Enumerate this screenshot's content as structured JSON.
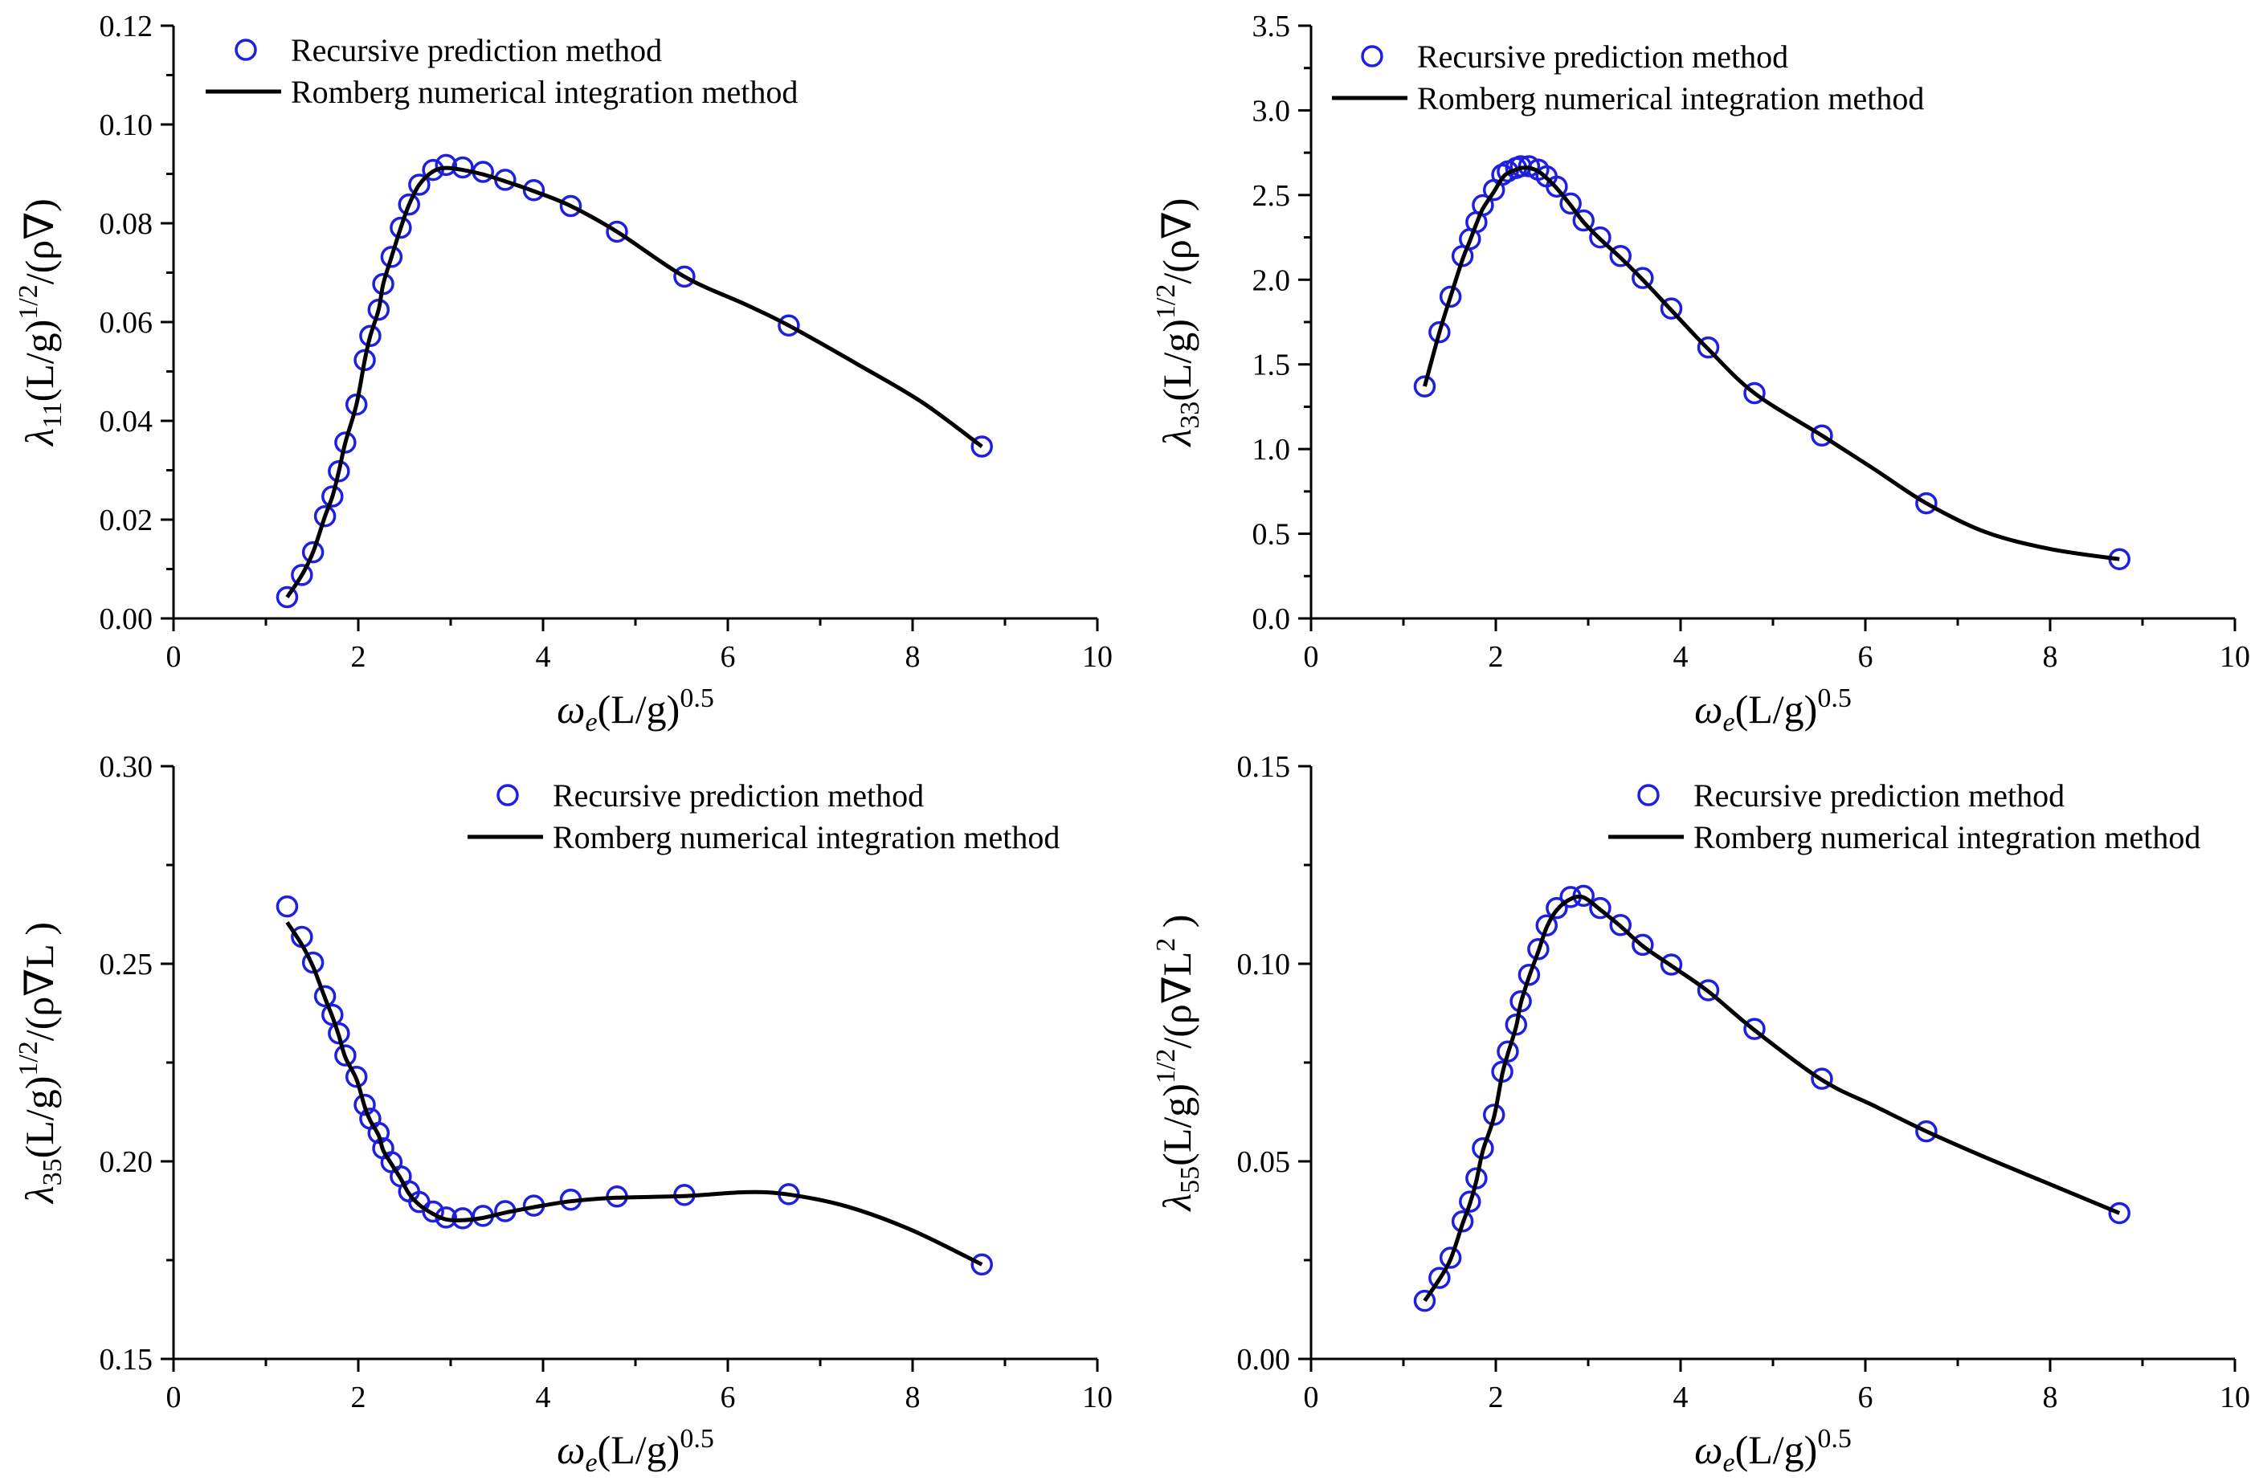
{
  "colors": {
    "marker": "#1f1fe0",
    "line": "#000000",
    "axes": "#000000"
  },
  "chart_data": [
    {
      "id": "lambda11",
      "type": "line",
      "title": "",
      "xlabel": "ω_e(L/g)^0.5",
      "xlabel_parts": {
        "sym": "ω",
        "sub": "e",
        "mid": "(L/g)",
        "sup": "0.5"
      },
      "ylabel": "λ11(L/g)^1/2/(ρ∇)",
      "ylabel_parts": {
        "sym": "λ",
        "sub": "11",
        "mid": "(L/g)",
        "sup": "1/2",
        "tail": "/(ρ∇)"
      },
      "xlim": [
        0,
        10
      ],
      "ylim": [
        0,
        0.12
      ],
      "xticks": [
        "0",
        "2",
        "4",
        "6",
        "8",
        "10"
      ],
      "yticks": [
        "0.00",
        "0.02",
        "0.04",
        "0.06",
        "0.08",
        "0.10",
        "0.12"
      ],
      "legend": {
        "placement": "top-left",
        "entries": [
          "Recursive prediction method",
          "Romberg numerical integration method"
        ]
      },
      "series": [
        {
          "name": "Recursive prediction method",
          "marker": "circle",
          "x": [
            1.23,
            1.39,
            1.51,
            1.64,
            1.72,
            1.79,
            1.86,
            1.98,
            2.07,
            2.13,
            2.22,
            2.27,
            2.36,
            2.46,
            2.55,
            2.66,
            2.81,
            2.95,
            3.13,
            3.35,
            3.59,
            3.9,
            4.3,
            4.8,
            5.53,
            6.66,
            8.75
          ],
          "y": [
            0.0043,
            0.0088,
            0.0134,
            0.0207,
            0.0247,
            0.0298,
            0.0356,
            0.0433,
            0.0523,
            0.0572,
            0.0625,
            0.0677,
            0.0732,
            0.0791,
            0.0838,
            0.0878,
            0.0908,
            0.0918,
            0.0913,
            0.0904,
            0.0888,
            0.0867,
            0.0835,
            0.0783,
            0.0692,
            0.0593,
            0.0348
          ]
        },
        {
          "name": "Romberg numerical integration method",
          "marker": "none",
          "x": [
            1.23,
            1.39,
            1.51,
            1.64,
            1.72,
            1.79,
            1.86,
            1.98,
            2.07,
            2.13,
            2.22,
            2.27,
            2.36,
            2.46,
            2.55,
            2.66,
            2.81,
            2.95,
            3.13,
            3.35,
            3.59,
            3.9,
            4.3,
            4.8,
            5.53,
            6.2,
            6.66,
            7.4,
            8.1,
            8.75
          ],
          "y": [
            0.0043,
            0.0088,
            0.0134,
            0.0207,
            0.0247,
            0.0298,
            0.0356,
            0.0433,
            0.0523,
            0.0572,
            0.0625,
            0.0677,
            0.0732,
            0.0791,
            0.0838,
            0.0878,
            0.0905,
            0.0912,
            0.0908,
            0.0899,
            0.0885,
            0.0865,
            0.0835,
            0.0783,
            0.0692,
            0.0635,
            0.0593,
            0.0515,
            0.0438,
            0.0348
          ]
        }
      ]
    },
    {
      "id": "lambda33",
      "type": "line",
      "title": "",
      "xlabel": "ω_e(L/g)^0.5",
      "xlabel_parts": {
        "sym": "ω",
        "sub": "e",
        "mid": "(L/g)",
        "sup": "0.5"
      },
      "ylabel": "λ33(L/g)^1/2/(ρ∇)",
      "ylabel_parts": {
        "sym": "λ",
        "sub": "33",
        "mid": "(L/g)",
        "sup": "1/2",
        "tail": "/(ρ∇)"
      },
      "xlim": [
        0,
        10
      ],
      "ylim": [
        0,
        3.5
      ],
      "xticks": [
        "0",
        "2",
        "4",
        "6",
        "8",
        "10"
      ],
      "yticks": [
        "0.0",
        "0.5",
        "1.0",
        "1.5",
        "2.0",
        "2.5",
        "3.0",
        "3.5"
      ],
      "legend": {
        "placement": "top-left",
        "entries": [
          "Recursive prediction method",
          "Romberg numerical integration method"
        ]
      },
      "series": [
        {
          "name": "Recursive prediction method",
          "marker": "circle",
          "x": [
            1.23,
            1.39,
            1.51,
            1.64,
            1.72,
            1.79,
            1.86,
            1.98,
            2.07,
            2.13,
            2.22,
            2.27,
            2.36,
            2.46,
            2.55,
            2.66,
            2.81,
            2.95,
            3.13,
            3.35,
            3.59,
            3.9,
            4.3,
            4.8,
            5.53,
            6.66,
            8.75
          ],
          "y": [
            1.37,
            1.69,
            1.9,
            2.14,
            2.24,
            2.34,
            2.44,
            2.53,
            2.62,
            2.64,
            2.66,
            2.67,
            2.67,
            2.65,
            2.61,
            2.55,
            2.45,
            2.35,
            2.25,
            2.14,
            2.01,
            1.83,
            1.6,
            1.33,
            1.08,
            0.68,
            0.35
          ]
        },
        {
          "name": "Romberg numerical integration method",
          "marker": "none",
          "x": [
            1.23,
            1.39,
            1.51,
            1.64,
            1.72,
            1.79,
            1.86,
            1.98,
            2.07,
            2.13,
            2.22,
            2.27,
            2.36,
            2.46,
            2.55,
            2.66,
            2.81,
            2.95,
            3.13,
            3.35,
            3.59,
            3.9,
            4.3,
            4.8,
            5.53,
            6.1,
            6.66,
            7.3,
            8.0,
            8.75
          ],
          "y": [
            1.37,
            1.69,
            1.9,
            2.12,
            2.23,
            2.33,
            2.42,
            2.52,
            2.6,
            2.63,
            2.65,
            2.66,
            2.66,
            2.64,
            2.6,
            2.54,
            2.44,
            2.34,
            2.24,
            2.13,
            2.0,
            1.82,
            1.59,
            1.33,
            1.08,
            0.88,
            0.68,
            0.51,
            0.41,
            0.35
          ]
        }
      ]
    },
    {
      "id": "lambda35",
      "type": "line",
      "title": "",
      "xlabel": "ω_e(L/g)^0.5",
      "xlabel_parts": {
        "sym": "ω",
        "sub": "e",
        "mid": "(L/g)",
        "sup": "0.5"
      },
      "ylabel": "λ35(L/g)^1/2/(ρ∇L)",
      "ylabel_parts": {
        "sym": "λ",
        "sub": "35",
        "mid": "(L/g)",
        "sup": "1/2",
        "tail": "/(ρ∇L )"
      },
      "xlim": [
        0,
        10
      ],
      "ylim": [
        0.15,
        0.3
      ],
      "xticks": [
        "0",
        "2",
        "4",
        "6",
        "8",
        "10"
      ],
      "yticks": [
        "0.15",
        "0.20",
        "0.25",
        "0.30"
      ],
      "legend": {
        "placement": "top-right",
        "entries": [
          "Recursive prediction method",
          "Romberg numerical integration method"
        ]
      },
      "series": [
        {
          "name": "Recursive prediction method",
          "marker": "circle",
          "x": [
            1.23,
            1.39,
            1.51,
            1.64,
            1.72,
            1.79,
            1.86,
            1.98,
            2.07,
            2.13,
            2.22,
            2.27,
            2.36,
            2.46,
            2.55,
            2.66,
            2.81,
            2.95,
            3.13,
            3.35,
            3.59,
            3.9,
            4.3,
            4.8,
            5.53,
            6.66,
            8.75
          ],
          "y": [
            0.2645,
            0.2568,
            0.2503,
            0.2418,
            0.2371,
            0.2324,
            0.2268,
            0.2214,
            0.2143,
            0.2108,
            0.2072,
            0.2033,
            0.1998,
            0.1962,
            0.1924,
            0.1897,
            0.1873,
            0.1858,
            0.1856,
            0.1862,
            0.1874,
            0.1888,
            0.1903,
            0.1911,
            0.1915,
            0.1917,
            0.1739
          ]
        },
        {
          "name": "Romberg numerical integration method",
          "marker": "none",
          "x": [
            1.23,
            1.39,
            1.51,
            1.64,
            1.72,
            1.79,
            1.86,
            1.98,
            2.07,
            2.13,
            2.22,
            2.27,
            2.36,
            2.46,
            2.55,
            2.66,
            2.81,
            2.95,
            3.13,
            3.35,
            3.59,
            3.9,
            4.3,
            4.8,
            5.53,
            6.2,
            6.66,
            7.3,
            8.0,
            8.75
          ],
          "y": [
            0.2605,
            0.2548,
            0.2493,
            0.2413,
            0.2366,
            0.2318,
            0.2263,
            0.2208,
            0.2138,
            0.2103,
            0.2066,
            0.2028,
            0.1993,
            0.1956,
            0.1918,
            0.189,
            0.1867,
            0.1853,
            0.1851,
            0.1857,
            0.187,
            0.1884,
            0.1899,
            0.1908,
            0.1912,
            0.1922,
            0.1916,
            0.1885,
            0.1825,
            0.1739
          ]
        }
      ]
    },
    {
      "id": "lambda55",
      "type": "line",
      "title": "",
      "xlabel": "ω_e(L/g)^0.5",
      "xlabel_parts": {
        "sym": "ω",
        "sub": "e",
        "mid": "(L/g)",
        "sup": "0.5"
      },
      "ylabel": "λ55(L/g)^1/2/(ρ∇L^2)",
      "ylabel_parts": {
        "sym": "λ",
        "sub": "55",
        "mid": "(L/g)",
        "sup": "1/2",
        "tail": "/(ρ∇L",
        "tail_sup": "2",
        "tail_end": " )"
      },
      "xlim": [
        0,
        10
      ],
      "ylim": [
        0,
        0.15
      ],
      "xticks": [
        "0",
        "2",
        "4",
        "6",
        "8",
        "10"
      ],
      "yticks": [
        "0.00",
        "0.05",
        "0.10",
        "0.15"
      ],
      "legend": {
        "placement": "top-right",
        "entries": [
          "Recursive prediction method",
          "Romberg numerical integration method"
        ]
      },
      "series": [
        {
          "name": "Recursive prediction method",
          "marker": "circle",
          "x": [
            1.23,
            1.39,
            1.51,
            1.64,
            1.72,
            1.79,
            1.86,
            1.98,
            2.07,
            2.13,
            2.22,
            2.27,
            2.36,
            2.46,
            2.55,
            2.66,
            2.81,
            2.95,
            3.13,
            3.35,
            3.59,
            3.9,
            4.3,
            4.8,
            5.53,
            6.66,
            8.75
          ],
          "y": [
            0.0147,
            0.0205,
            0.0256,
            0.0348,
            0.0398,
            0.0457,
            0.0533,
            0.0618,
            0.0727,
            0.0778,
            0.0846,
            0.0905,
            0.0972,
            0.1037,
            0.1097,
            0.1141,
            0.1169,
            0.1172,
            0.1141,
            0.1098,
            0.1048,
            0.0998,
            0.0933,
            0.0835,
            0.0709,
            0.0576,
            0.0369
          ]
        },
        {
          "name": "Romberg numerical integration method",
          "marker": "none",
          "x": [
            1.23,
            1.39,
            1.51,
            1.64,
            1.72,
            1.79,
            1.86,
            1.98,
            2.07,
            2.13,
            2.22,
            2.27,
            2.36,
            2.46,
            2.55,
            2.66,
            2.81,
            2.95,
            3.13,
            3.35,
            3.59,
            3.9,
            4.3,
            4.8,
            5.53,
            6.1,
            6.66,
            7.3,
            8.0,
            8.75
          ],
          "y": [
            0.0147,
            0.0202,
            0.0252,
            0.0342,
            0.0393,
            0.0451,
            0.0527,
            0.0612,
            0.0721,
            0.0772,
            0.0841,
            0.09,
            0.0967,
            0.1031,
            0.1092,
            0.1136,
            0.1164,
            0.1168,
            0.1137,
            0.1095,
            0.1045,
            0.0995,
            0.093,
            0.0832,
            0.0706,
            0.064,
            0.0576,
            0.051,
            0.0442,
            0.0369
          ]
        }
      ]
    }
  ]
}
